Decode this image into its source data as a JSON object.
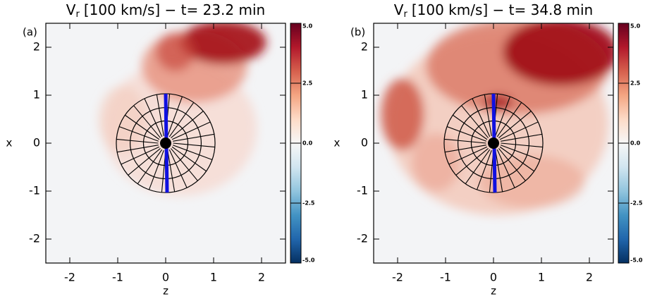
{
  "chart_data": [
    {
      "type": "heatmap",
      "panel_label": "(a)",
      "title": {
        "symbol": "V",
        "subscript": "r",
        "text": "[100 km/s] − t= 23.2 min"
      },
      "xlabel": "z",
      "ylabel": "x",
      "xlim": [
        -2.5,
        2.5
      ],
      "ylim": [
        -2.5,
        2.5
      ],
      "xticks": [
        -2,
        -1,
        0,
        1,
        2
      ],
      "yticks": [
        -2,
        -1,
        0,
        1,
        2
      ],
      "clim": [
        -5,
        5
      ],
      "cticks": [
        {
          "value": -5,
          "label": "-5.0"
        },
        {
          "value": -2.5,
          "label": "-2.5"
        },
        {
          "value": 0,
          "label": "0.0"
        },
        {
          "value": 2.5,
          "label": "2.5"
        },
        {
          "value": 5,
          "label": "5.0"
        }
      ]
    },
    {
      "type": "heatmap",
      "panel_label": "(b)",
      "title": {
        "symbol": "V",
        "subscript": "r",
        "text": "[100 km/s] − t= 34.8 min"
      },
      "xlabel": "z",
      "ylabel": "x",
      "xlim": [
        -2.5,
        2.5
      ],
      "ylim": [
        -2.5,
        2.5
      ],
      "xticks": [
        -2,
        -1,
        0,
        1,
        2
      ],
      "yticks": [
        -2,
        -1,
        0,
        1,
        2
      ],
      "clim": [
        -5,
        5
      ],
      "cticks": [
        {
          "value": -5,
          "label": "-5.0"
        },
        {
          "value": -2.5,
          "label": "-2.5"
        },
        {
          "value": 0,
          "label": "0.0"
        },
        {
          "value": 2.5,
          "label": "2.5"
        },
        {
          "value": 5,
          "label": "5.0"
        }
      ]
    }
  ]
}
